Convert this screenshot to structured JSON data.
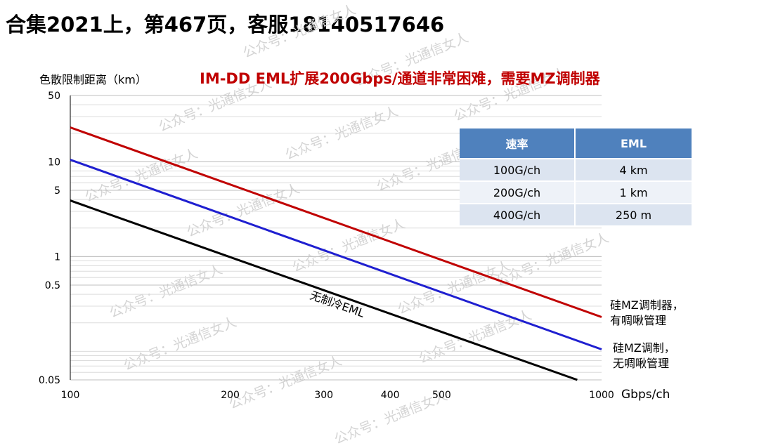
{
  "header": {
    "title": "合集2021上，第467页，客服18140517646"
  },
  "watermark_text": "公众号：光通信女人",
  "table": {
    "headers": [
      "速率",
      "EML"
    ],
    "rows": [
      [
        "100G/ch",
        "4 km"
      ],
      [
        "200G/ch",
        "1 km"
      ],
      [
        "400G/ch",
        "250 m"
      ]
    ]
  },
  "series_labels": {
    "red": [
      "硅MZ调制器，",
      "有啁啾管理"
    ],
    "blue": [
      "硅MZ调制，",
      "无啁啾管理"
    ]
  },
  "colors": {
    "title": "#c00000",
    "red_series": "#c00000",
    "blue_series": "#1f1fd0",
    "black_series": "#000000",
    "table_header": "#4f81bd"
  },
  "chart_data": {
    "type": "line",
    "title": "IM-DD EML扩展200Gbps/通道非常困难，需要MZ调制器",
    "xlabel": "Gbps/ch",
    "ylabel": "色散限制距离（km）",
    "x_scale": "log",
    "y_scale": "log",
    "xlim": [
      100,
      1000
    ],
    "ylim": [
      0.05,
      50
    ],
    "x_ticks": [
      100,
      200,
      300,
      400,
      500,
      1000
    ],
    "x_tick_labels": [
      "100",
      "200",
      "300",
      "400",
      "500",
      "1000"
    ],
    "y_ticks": [
      0.05,
      0.5,
      1,
      5,
      10,
      50
    ],
    "y_tick_labels": [
      "0.05",
      "0.5",
      "1",
      "5",
      "10",
      "50"
    ],
    "grid": true,
    "series": [
      {
        "key": "red",
        "color": "#c00000",
        "x": [
          100,
          1000
        ],
        "y": [
          23,
          0.23
        ]
      },
      {
        "key": "blue",
        "color": "#1f1fd0",
        "x": [
          100,
          1000
        ],
        "y": [
          10.5,
          0.105
        ]
      },
      {
        "name": "无制冷EML",
        "key": "black",
        "color": "#000000",
        "x": [
          100,
          900
        ],
        "y": [
          3.9,
          0.05
        ]
      }
    ]
  }
}
